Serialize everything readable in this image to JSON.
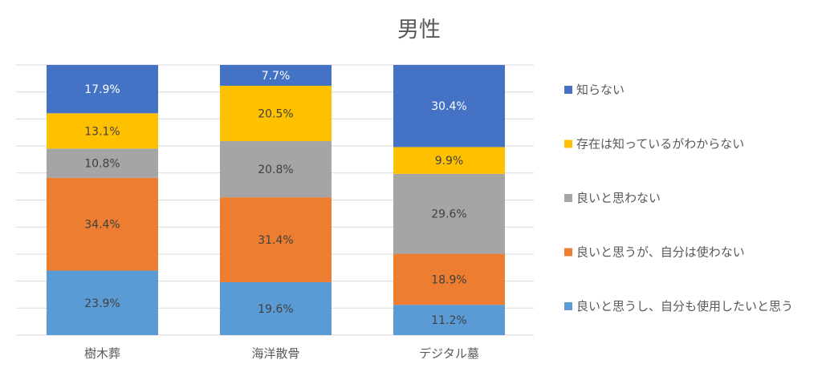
{
  "chart_data": {
    "type": "bar",
    "stacked": true,
    "percent_stacked": true,
    "title": "男性",
    "categories": [
      "樹木葬",
      "海洋散骨",
      "デジタル墓"
    ],
    "series": [
      {
        "name": "良いと思うし、自分も使用したいと思う",
        "color": "#5B9BD5",
        "values": [
          23.9,
          19.6,
          11.2
        ]
      },
      {
        "name": "良いと思うが、自分は使わない",
        "color": "#ED7D31",
        "values": [
          34.4,
          31.4,
          18.9
        ]
      },
      {
        "name": "良いと思わない",
        "color": "#A5A5A5",
        "values": [
          10.8,
          20.8,
          29.6
        ]
      },
      {
        "name": "存在は知っているがわからない",
        "color": "#FFC000",
        "values": [
          13.1,
          20.5,
          9.9
        ]
      },
      {
        "name": "知らない",
        "color": "#4472C4",
        "values": [
          17.9,
          7.7,
          30.4
        ]
      }
    ],
    "value_suffix": "%",
    "ylim": [
      0,
      100
    ],
    "grid": true,
    "y_tick_labels_shown": false,
    "legend_placement": "right",
    "legend_order": [
      "知らない",
      "存在は知っているがわからない",
      "良いと思わない",
      "良いと思うが、自分は使わない",
      "良いと思うし、自分も使用したいと思う"
    ]
  }
}
